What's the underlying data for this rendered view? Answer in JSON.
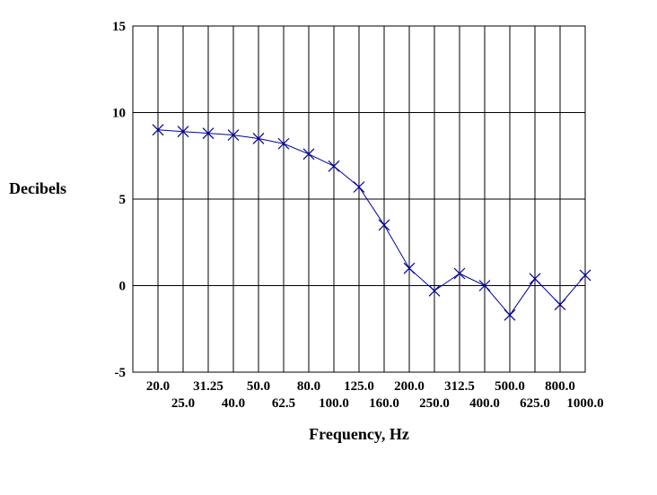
{
  "chart_data": {
    "type": "line",
    "title": "",
    "xlabel": "Frequency, Hz",
    "ylabel": "Decibels",
    "ylim": [
      -5,
      15
    ],
    "yticks": [
      "-5",
      "0",
      "5",
      "10",
      "15"
    ],
    "x_scale": "log",
    "grid": true,
    "legend": "none",
    "categories": [
      "20.0",
      "25.0",
      "31.25",
      "40.0",
      "50.0",
      "62.5",
      "80.0",
      "100.0",
      "125.0",
      "160.0",
      "200.0",
      "250.0",
      "312.5",
      "400.0",
      "500.0",
      "625.0",
      "800.0",
      "1000.0"
    ],
    "series": [
      {
        "color": "#0000a0",
        "marker": "x",
        "values": [
          9.0,
          8.9,
          8.8,
          8.7,
          8.5,
          8.2,
          7.6,
          6.9,
          5.7,
          3.5,
          1.0,
          -0.3,
          0.7,
          0.0,
          -1.7,
          0.4,
          -1.1,
          0.6
        ]
      }
    ]
  }
}
